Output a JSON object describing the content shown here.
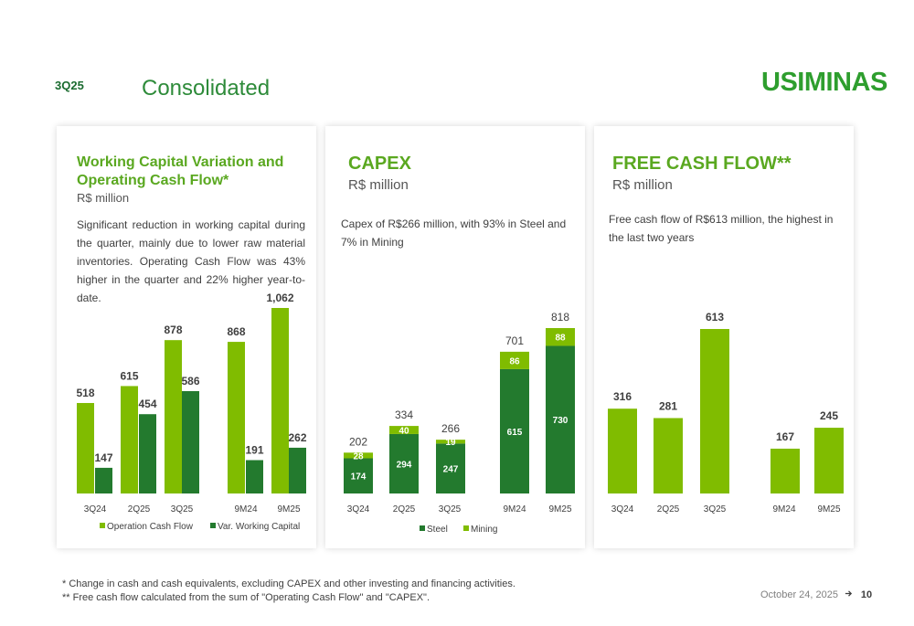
{
  "header": {
    "quarter_tag": "3Q25",
    "page_title": "Consolidated",
    "logo_text": "USIMINAS"
  },
  "colors": {
    "light_green": "#80bc00",
    "dark_green": "#237a2e",
    "title_green": "#5aa820"
  },
  "cards": {
    "wc": {
      "title_line1": "Working Capital Variation and",
      "title_line2": "Operating Cash Flow*",
      "subtitle": "R$ million",
      "description": "Significant reduction in working capital during the quarter, mainly due to lower raw material inventories. Operating Cash Flow was 43% higher in the quarter and 22% higher year-to-date."
    },
    "capex": {
      "title": "CAPEX",
      "subtitle": "R$ million",
      "description": "Capex of R$266 million, with 93% in Steel and 7% in Mining"
    },
    "fcf": {
      "title": "FREE CASH FLOW**",
      "subtitle": "R$ million",
      "description": "Free cash flow of R$613 million, the highest in the last two years"
    }
  },
  "chart_data": [
    {
      "id": "wc",
      "type": "bar",
      "categories": [
        "3Q24",
        "2Q25",
        "3Q25",
        "9M24",
        "9M25"
      ],
      "series": [
        {
          "name": "Operation Cash Flow",
          "color": "#80bc00",
          "values": [
            518,
            615,
            878,
            868,
            1062
          ]
        },
        {
          "name": "Var. Working Capital",
          "color": "#237a2e",
          "values": [
            147,
            454,
            586,
            191,
            262
          ]
        }
      ],
      "value_labels": [
        [
          "518",
          "615",
          "878",
          "868",
          "1,062"
        ],
        [
          "147",
          "454",
          "586",
          "191",
          "262"
        ]
      ],
      "ylim": [
        0,
        1062
      ],
      "legend": "bottom"
    },
    {
      "id": "capex",
      "type": "bar",
      "stacked": true,
      "categories": [
        "3Q24",
        "2Q25",
        "3Q25",
        "9M24",
        "9M25"
      ],
      "series": [
        {
          "name": "Steel",
          "color": "#237a2e",
          "values": [
            174,
            294,
            247,
            615,
            730
          ]
        },
        {
          "name": "Mining",
          "color": "#80bc00",
          "values": [
            28,
            40,
            19,
            86,
            88
          ]
        }
      ],
      "totals": [
        202,
        334,
        266,
        701,
        818
      ],
      "ylim": [
        0,
        818
      ],
      "legend": "bottom"
    },
    {
      "id": "fcf",
      "type": "bar",
      "categories": [
        "3Q24",
        "2Q25",
        "3Q25",
        "9M24",
        "9M25"
      ],
      "series": [
        {
          "name": "Free Cash Flow",
          "color": "#80bc00",
          "values": [
            316,
            281,
            613,
            167,
            245
          ]
        }
      ],
      "ylim": [
        0,
        613
      ],
      "legend": "none"
    }
  ],
  "footnotes": {
    "line1": "* Change in cash and cash equivalents, excluding CAPEX and other investing and financing activities.",
    "line2": "** Free cash flow calculated from the sum of \"Operating Cash Flow\" and \"CAPEX\"."
  },
  "footer": {
    "date": "October 24, 2025",
    "arrow_icon": "arrow-right-icon",
    "page_number": "10"
  }
}
